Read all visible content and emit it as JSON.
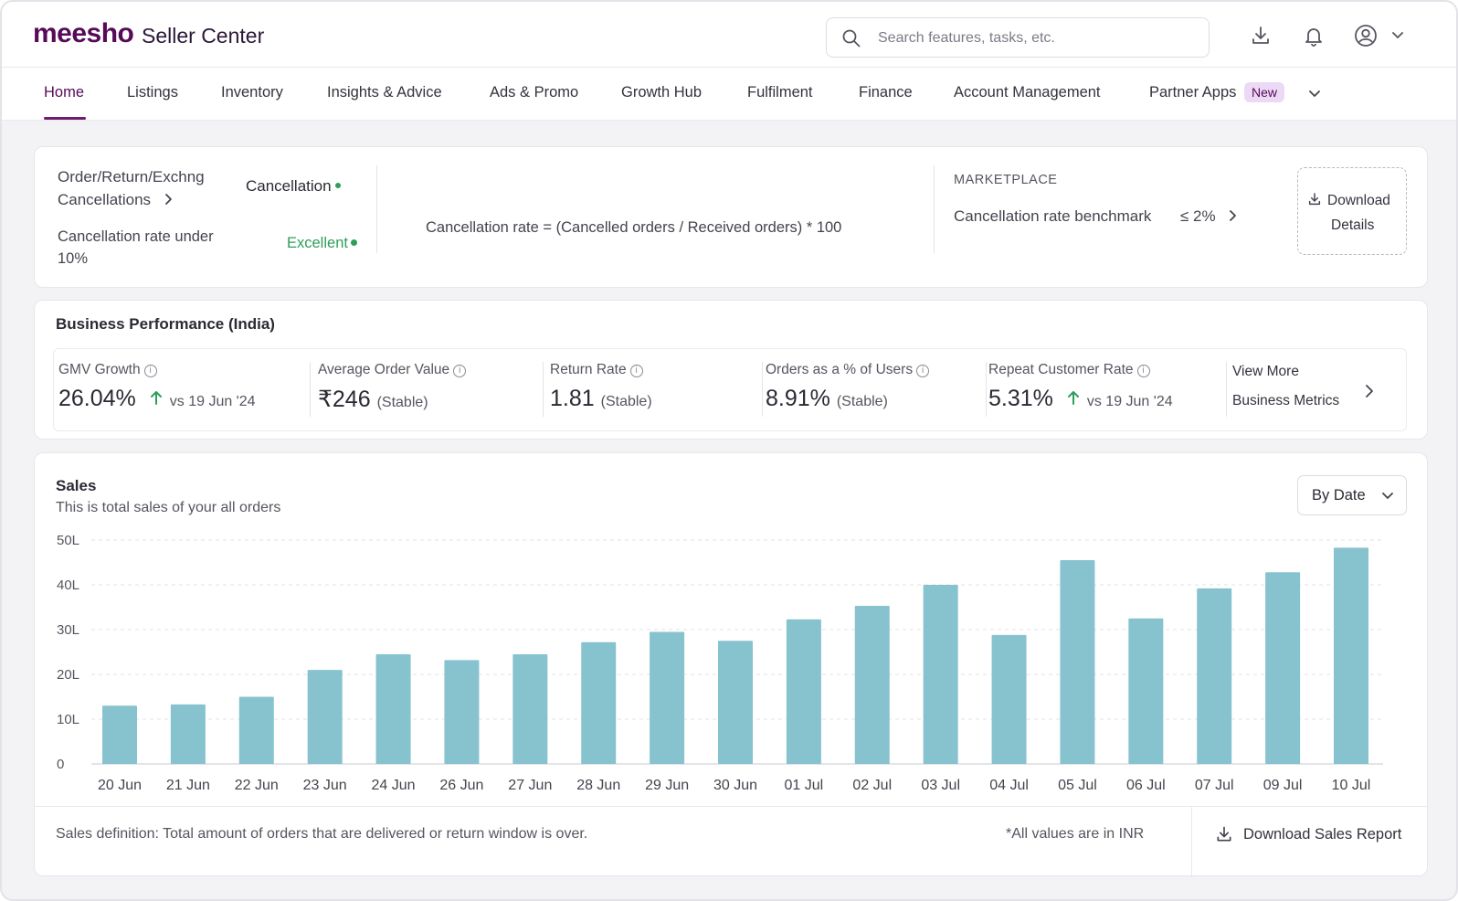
{
  "header": {
    "logo": "meesho",
    "app_name": "Seller Center",
    "search_placeholder": "Search features, tasks, etc."
  },
  "nav": {
    "items": [
      "Home",
      "Listings",
      "Inventory",
      "Insights & Advice",
      "Ads & Promo",
      "Growth Hub",
      "Fulfilment",
      "Finance",
      "Account Management",
      "Partner Apps"
    ],
    "active": "Home",
    "new_badge": "New"
  },
  "cancellations": {
    "link_line1": "Order/Return/Exchng",
    "link_line2": "Cancellations",
    "metric_label": "Cancellation",
    "rate_text_line1": "Cancellation rate under",
    "rate_text_line2": "10%",
    "status": "Excellent",
    "formula": "Cancellation rate = (Cancelled orders / Received orders) * 100",
    "marketplace_label": "MARKETPLACE",
    "benchmark_label": "Cancellation rate benchmark",
    "benchmark_value": "≤ 2%",
    "download_line1": "Download",
    "download_line2": "Details"
  },
  "business": {
    "title": "Business Performance (India)",
    "metrics": [
      {
        "label": "GMV Growth",
        "value": "26.04%",
        "sub": "vs 19 Jun '24",
        "up": true
      },
      {
        "label": "Average Order Value",
        "value": "₹246",
        "sub": "(Stable)"
      },
      {
        "label": "Return Rate",
        "value": "1.81",
        "sub": "(Stable)"
      },
      {
        "label": "Orders as a % of Users",
        "value": "8.91%",
        "sub": "(Stable)"
      },
      {
        "label": "Repeat Customer Rate",
        "value": "5.31%",
        "sub": "vs 19 Jun '24",
        "up": true
      }
    ],
    "view_more_line1": "View More",
    "view_more_line2": "Business Metrics"
  },
  "sales": {
    "title": "Sales",
    "subtitle": "This is total sales of your all orders",
    "period_select": "By Date",
    "definition": "Sales definition: Total amount of orders that are delivered or return window is over.",
    "inr_note": "*All values are in INR",
    "download_report": "Download Sales Report"
  },
  "colors": {
    "brand": "#570a57",
    "bar": "#87c2cf",
    "positive": "#2e9e5b"
  },
  "chart_data": {
    "type": "bar",
    "categories": [
      "20 Jun",
      "21 Jun",
      "22 Jun",
      "23 Jun",
      "24 Jun",
      "26 Jun",
      "27 Jun",
      "28 Jun",
      "29 Jun",
      "30 Jun",
      "01 Jul",
      "02 Jul",
      "03 Jul",
      "04 Jul",
      "05 Jul",
      "06 Jul",
      "07 Jul",
      "09 Jul",
      "10 Jul"
    ],
    "values": [
      13,
      13.3,
      15,
      21,
      24.5,
      23.2,
      24.5,
      27.2,
      29.5,
      27.5,
      32.3,
      35.3,
      40,
      28.8,
      45.5,
      32.5,
      39.2,
      42.8,
      48.3
    ],
    "ylim": [
      0,
      50
    ],
    "yticks": [
      "0",
      "10L",
      "20L",
      "30L",
      "40L",
      "50L"
    ],
    "title": "",
    "xlabel": "",
    "ylabel": "",
    "grid": true,
    "unit": "L"
  }
}
